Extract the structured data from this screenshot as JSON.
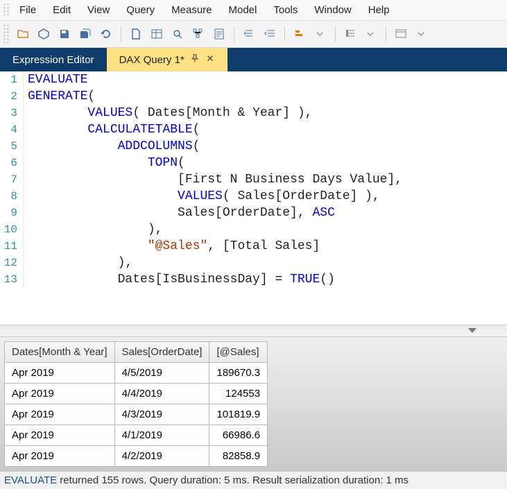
{
  "menu": [
    "File",
    "Edit",
    "View",
    "Query",
    "Measure",
    "Model",
    "Tools",
    "Window",
    "Help"
  ],
  "toolbar_icons": [
    "folder-open-icon",
    "cube-icon",
    "save-icon",
    "save-all-icon",
    "refresh-icon",
    "sep",
    "document-icon",
    "table-icon",
    "find-icon",
    "tree-icon",
    "script-icon",
    "sep",
    "indent-icon",
    "outdent-icon",
    "sep",
    "format-icon",
    "format-dd-icon",
    "sep",
    "align-icon",
    "align-dd-icon",
    "sep",
    "window-icon",
    "dropdown-icon"
  ],
  "tabs": [
    {
      "label": "Expression Editor",
      "active": false
    },
    {
      "label": "DAX Query 1*",
      "active": true,
      "pinned": true,
      "closable": true
    }
  ],
  "code": {
    "lines": [
      [
        {
          "t": "EVALUATE",
          "c": "kw"
        }
      ],
      [
        {
          "t": "GENERATE",
          "c": "kw"
        },
        {
          "t": "("
        }
      ],
      [
        {
          "t": "        "
        },
        {
          "t": "VALUES",
          "c": "fn"
        },
        {
          "t": "( Dates[Month & Year] ),"
        }
      ],
      [
        {
          "t": "        "
        },
        {
          "t": "CALCULATETABLE",
          "c": "fn"
        },
        {
          "t": "("
        }
      ],
      [
        {
          "t": "            "
        },
        {
          "t": "ADDCOLUMNS",
          "c": "fn"
        },
        {
          "t": "("
        }
      ],
      [
        {
          "t": "                "
        },
        {
          "t": "TOPN",
          "c": "fn"
        },
        {
          "t": "("
        }
      ],
      [
        {
          "t": "                    [First N Business Days Value],"
        }
      ],
      [
        {
          "t": "                    "
        },
        {
          "t": "VALUES",
          "c": "fn"
        },
        {
          "t": "( Sales[OrderDate] ),"
        }
      ],
      [
        {
          "t": "                    Sales[OrderDate], "
        },
        {
          "t": "ASC",
          "c": "kw"
        }
      ],
      [
        {
          "t": "                ),"
        }
      ],
      [
        {
          "t": "                "
        },
        {
          "t": "\"@Sales\"",
          "c": "str"
        },
        {
          "t": ", [Total Sales]"
        }
      ],
      [
        {
          "t": "            ),"
        }
      ],
      [
        {
          "t": "            Dates[IsBusinessDay] = "
        },
        {
          "t": "TRUE",
          "c": "fn"
        },
        {
          "t": "()"
        }
      ]
    ]
  },
  "results": {
    "columns": [
      "Dates[Month & Year]",
      "Sales[OrderDate]",
      "[@Sales]"
    ],
    "column_align": [
      "left",
      "left",
      "right"
    ],
    "rows": [
      [
        "Apr 2019",
        "4/5/2019",
        "189670.3"
      ],
      [
        "Apr 2019",
        "4/4/2019",
        "124553"
      ],
      [
        "Apr 2019",
        "4/3/2019",
        "101819.9"
      ],
      [
        "Apr 2019",
        "4/1/2019",
        "66986.6"
      ],
      [
        "Apr 2019",
        "4/2/2019",
        "82858.9"
      ]
    ]
  },
  "status": {
    "prefix": "EVALUATE",
    "rest": " returned 155 rows. Query duration: 5 ms. Result serialization duration: 1 ms"
  }
}
